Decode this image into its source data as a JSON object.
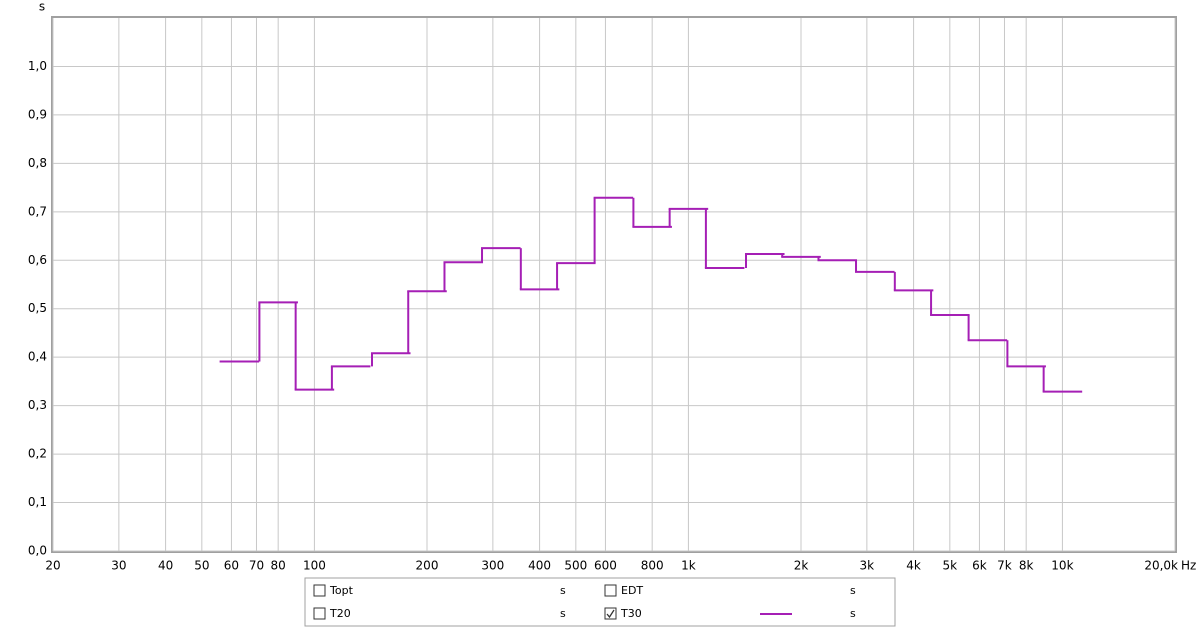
{
  "chart_data": {
    "type": "step",
    "y_label": "s",
    "x_label": "Hz",
    "log_x": true,
    "grid": true,
    "xlim": [
      20,
      20000
    ],
    "ylim": [
      0,
      1.1
    ],
    "xticks": [
      20,
      30,
      40,
      50,
      60,
      70,
      80,
      100,
      200,
      300,
      400,
      500,
      600,
      800,
      {
        "value": 1000,
        "label": "1k"
      },
      {
        "value": 2000,
        "label": "2k"
      },
      {
        "value": 3000,
        "label": "3k"
      },
      {
        "value": 4000,
        "label": "4k"
      },
      {
        "value": 5000,
        "label": "5k"
      },
      {
        "value": 6000,
        "label": "6k"
      },
      {
        "value": 7000,
        "label": "7k"
      },
      {
        "value": 8000,
        "label": "8k"
      },
      {
        "value": 10000,
        "label": "10k"
      },
      {
        "value": 20000,
        "label": "20,0k"
      }
    ],
    "yticks": [
      {
        "value": 0,
        "label": "0,0"
      },
      {
        "value": 0.1,
        "label": "0,1"
      },
      {
        "value": 0.2,
        "label": "0,2"
      },
      {
        "value": 0.3,
        "label": "0,3"
      },
      {
        "value": 0.4,
        "label": "0,4"
      },
      {
        "value": 0.5,
        "label": "0,5"
      },
      {
        "value": 0.6,
        "label": "0,6"
      },
      {
        "value": 0.7,
        "label": "0,7"
      },
      {
        "value": 0.8,
        "label": "0,8"
      },
      {
        "value": 0.9,
        "label": "0,9"
      },
      {
        "value": 1,
        "label": "1,0"
      }
    ],
    "x": [
      63,
      80,
      100,
      125,
      160,
      200,
      250,
      315,
      400,
      500,
      630,
      800,
      1000,
      1250,
      1600,
      2000,
      2500,
      3150,
      4000,
      5000,
      6300,
      8000,
      10000
    ],
    "series": [
      {
        "name": "T30",
        "unit": "s",
        "checked": true,
        "color": "#a51fb5",
        "values": [
          0.391,
          0.513,
          0.333,
          0.381,
          0.408,
          0.536,
          0.596,
          0.625,
          0.54,
          0.594,
          0.729,
          0.669,
          0.706,
          0.584,
          0.613,
          0.607,
          0.6,
          0.576,
          0.538,
          0.487,
          0.435,
          0.381,
          0.329
        ]
      }
    ],
    "legend": [
      {
        "label": "Topt",
        "unit": "s",
        "checked": false,
        "color": "#2e8b2e"
      },
      {
        "label": "EDT",
        "unit": "s",
        "checked": false,
        "color": "#2aa0a0"
      },
      {
        "label": "T20",
        "unit": "s",
        "checked": false,
        "color": "#000000"
      }
    ]
  }
}
